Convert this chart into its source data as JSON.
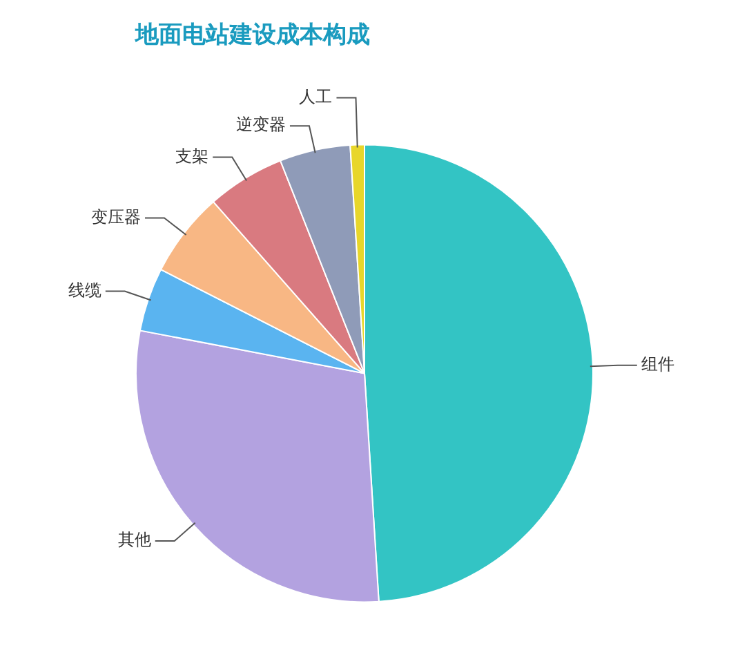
{
  "chart_data": {
    "type": "pie",
    "title": "地面电站建设成本构成",
    "categories": [
      "组件",
      "其他",
      "线缆",
      "变压器",
      "支架",
      "逆变器",
      "人工"
    ],
    "values": [
      49,
      29,
      4.5,
      6,
      5.5,
      5,
      1
    ],
    "colors": [
      "#33c4c4",
      "#b3a2e0",
      "#5ab4f0",
      "#f8b784",
      "#d97a80",
      "#8f9bb8",
      "#e8d62a"
    ],
    "legend": false
  }
}
